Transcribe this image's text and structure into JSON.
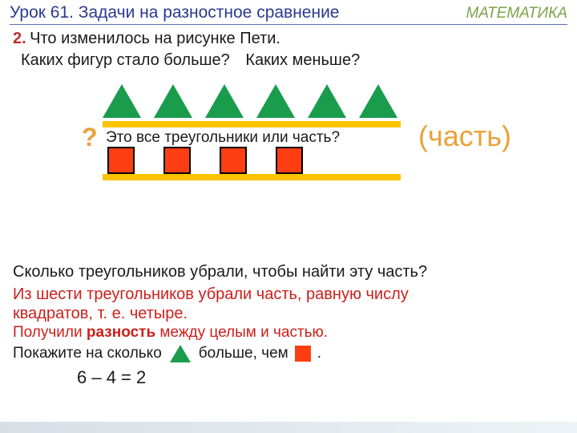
{
  "colors": {
    "title": "#2b3a8f",
    "subject": "#7fa24a",
    "hr": "#5b6fa8",
    "task_num": "#c0302b",
    "black": "#1a1a1a",
    "orange_text": "#e9a23a",
    "red_text": "#cc1f1a",
    "triangle_fill": "#1a9c4d",
    "square_fill": "#ff3d12",
    "bar_fill": "#ffc300"
  },
  "header": {
    "lesson": "Урок 61. Задачи на разностное сравнение",
    "subject": "МАТЕМАТИКА"
  },
  "task": {
    "num": "2.",
    "prompt": "Что изменилось на рисунке Пети.",
    "sub_a": "Каких фигур стало больше?",
    "sub_b": "Каких меньше?"
  },
  "figure": {
    "triangles": 6,
    "squares": 4,
    "qmark": "?",
    "mid_label": "Это все треугольники или часть?",
    "part_label": "(часть)"
  },
  "lines": {
    "l1": "Сколько треугольников убрали, чтобы найти эту часть?",
    "l2": "Из шести треугольников  убрали часть, равную числу",
    "l3": "квадратов, т. е. четыре.",
    "l4_a": "Получили ",
    "l4_b": "разность",
    "l4_c": " между целым и частью.",
    "l5_a": "Покажите на сколько",
    "l5_b": "больше, чем",
    "l5_c": ".",
    "eq": "6 – 4  = 2"
  }
}
